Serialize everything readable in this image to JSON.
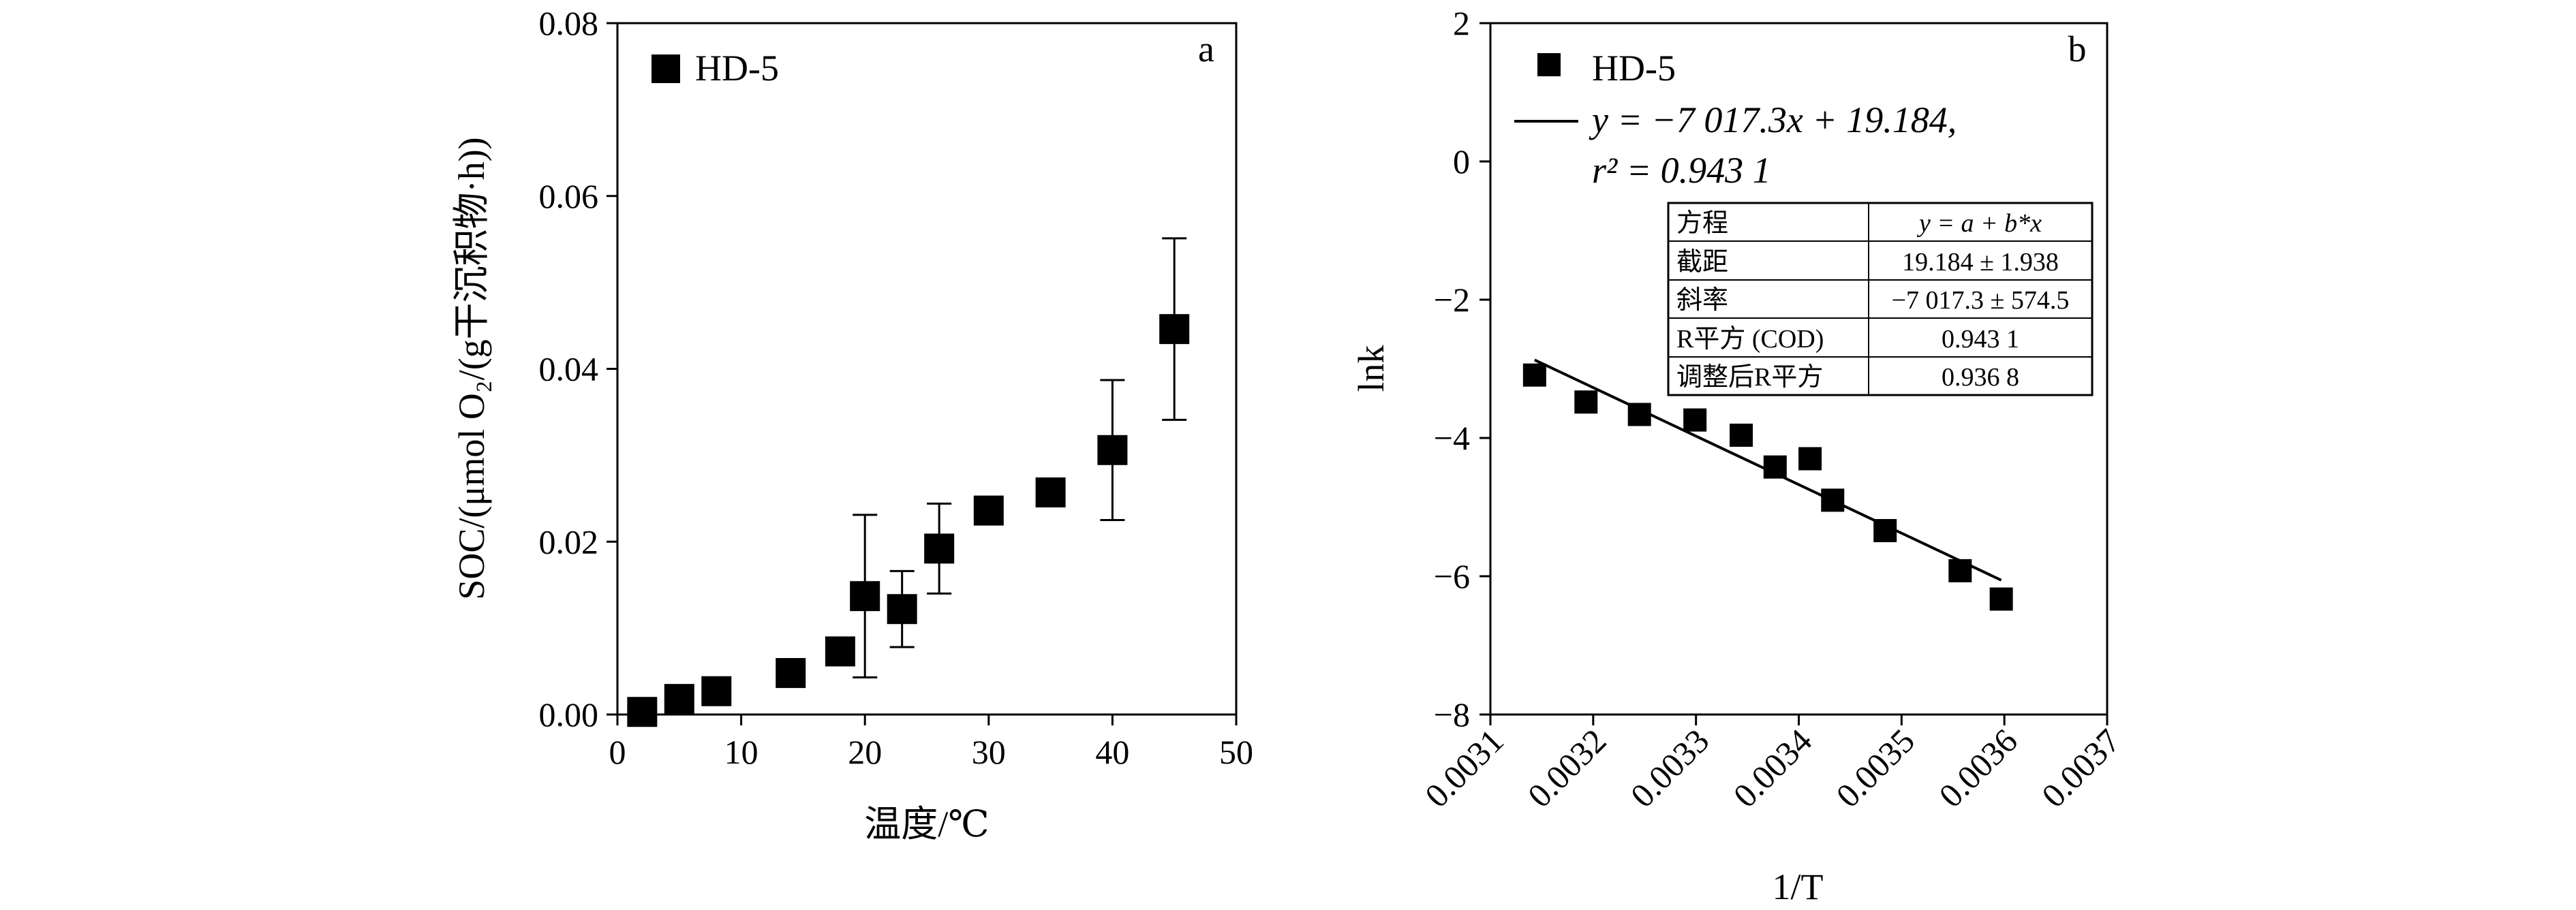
{
  "chart_data": [
    {
      "type": "scatter",
      "panel_label": "a",
      "xlabel": "温度/℃",
      "ylabel": "SOC/(μmol O₂/(g干沉积物·h))",
      "xlim": [
        0,
        50
      ],
      "ylim": [
        0,
        0.08
      ],
      "xticks": [
        "0",
        "10",
        "20",
        "30",
        "40",
        "50"
      ],
      "yticks": [
        "0.00",
        "0.02",
        "0.04",
        "0.06",
        "0.08"
      ],
      "grid": false,
      "legend_position": "top-left",
      "series": [
        {
          "name": "HD-5",
          "marker": "square",
          "points": [
            {
              "x": 2,
              "y": 0.0003,
              "err": 0
            },
            {
              "x": 5,
              "y": 0.0018,
              "err": 0.0015
            },
            {
              "x": 8,
              "y": 0.0027,
              "err": 0
            },
            {
              "x": 14,
              "y": 0.0048,
              "err": 0
            },
            {
              "x": 18,
              "y": 0.0073,
              "err": 0
            },
            {
              "x": 20,
              "y": 0.0137,
              "err": 0.0094
            },
            {
              "x": 23,
              "y": 0.0122,
              "err": 0.0044
            },
            {
              "x": 26,
              "y": 0.0192,
              "err": 0.0052
            },
            {
              "x": 30,
              "y": 0.0236,
              "err": 0
            },
            {
              "x": 35,
              "y": 0.0257,
              "err": 0
            },
            {
              "x": 40,
              "y": 0.0306,
              "err": 0.0081
            },
            {
              "x": 45,
              "y": 0.0446,
              "err": 0.0105
            }
          ]
        }
      ]
    },
    {
      "type": "scatter",
      "panel_label": "b",
      "xlabel": "1/T",
      "ylabel": "lnk",
      "xlim": [
        0.0031,
        0.0037
      ],
      "ylim": [
        -8,
        2
      ],
      "xticks": [
        "0.0031",
        "0.0032",
        "0.0033",
        "0.0034",
        "0.0035",
        "0.0036",
        "0.0037"
      ],
      "yticks": [
        "2",
        "0",
        "−2",
        "−4",
        "−6",
        "−8"
      ],
      "grid": false,
      "legend_position": "top-left",
      "series": [
        {
          "name": "HD-5",
          "marker": "square",
          "points": [
            {
              "x": 0.003143,
              "y": -3.09
            },
            {
              "x": 0.003193,
              "y": -3.48
            },
            {
              "x": 0.003245,
              "y": -3.66
            },
            {
              "x": 0.003299,
              "y": -3.74
            },
            {
              "x": 0.003344,
              "y": -3.96
            },
            {
              "x": 0.003377,
              "y": -4.42
            },
            {
              "x": 0.003411,
              "y": -4.3
            },
            {
              "x": 0.003433,
              "y": -4.9
            },
            {
              "x": 0.003484,
              "y": -5.34
            },
            {
              "x": 0.003557,
              "y": -5.92
            },
            {
              "x": 0.003597,
              "y": -6.33
            }
          ]
        }
      ],
      "fit": {
        "slope": -7017.3,
        "intercept": 19.184,
        "x_range": [
          0.003143,
          0.003597
        ],
        "legend_line1": "y = −7 017.3x + 19.184,",
        "legend_line2": "r² = 0.943 1"
      },
      "table": {
        "rows": [
          [
            "方程",
            "y = a + b*x"
          ],
          [
            "截距",
            "19.184 ± 1.938"
          ],
          [
            "斜率",
            "−7 017.3 ± 574.5"
          ],
          [
            "R平方 (COD)",
            "0.943 1"
          ],
          [
            "调整后R平方",
            "0.936 8"
          ]
        ]
      }
    }
  ]
}
